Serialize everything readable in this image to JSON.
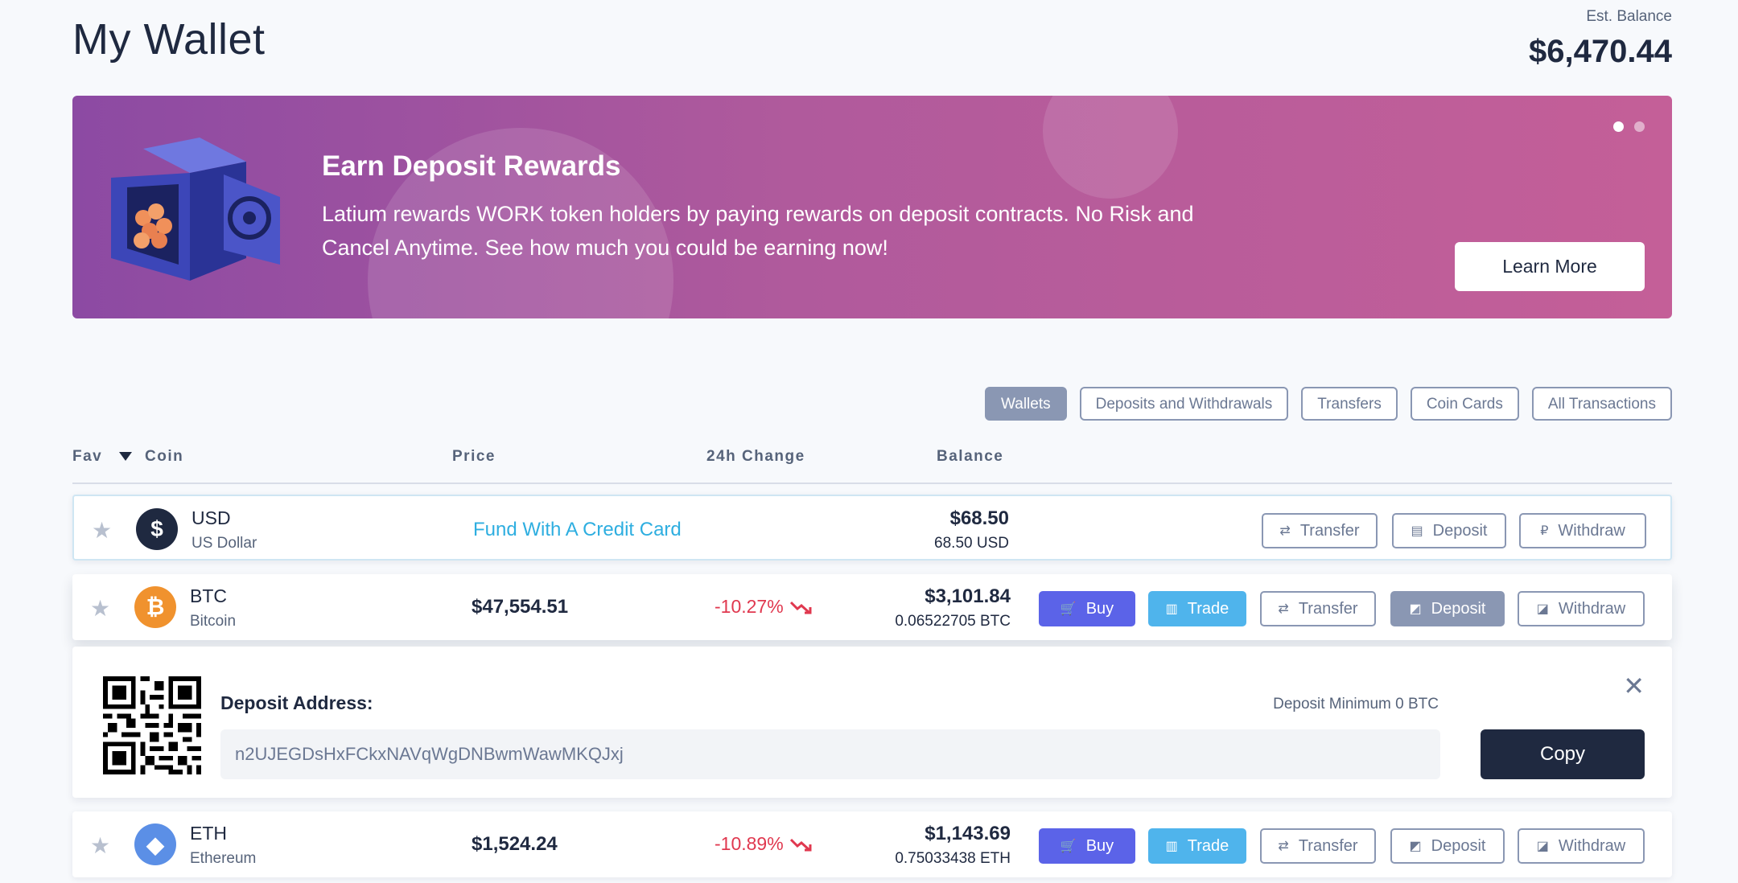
{
  "header": {
    "title": "My Wallet",
    "balance_label": "Est. Balance",
    "balance_value": "$6,470.44"
  },
  "banner": {
    "title": "Earn Deposit Rewards",
    "text": "Latium rewards WORK token holders by paying rewards on deposit contracts. No Risk and Cancel Anytime. See how much you could be earning now!",
    "button": "Learn More",
    "slides": 2,
    "active_slide": 1
  },
  "tabs": [
    {
      "label": "Wallets",
      "active": true
    },
    {
      "label": "Deposits and Withdrawals",
      "active": false
    },
    {
      "label": "Transfers",
      "active": false
    },
    {
      "label": "Coin Cards",
      "active": false
    },
    {
      "label": "All Transactions",
      "active": false
    }
  ],
  "columns": {
    "fav": "Fav",
    "coin": "Coin",
    "price": "Price",
    "change": "24h Change",
    "balance": "Balance"
  },
  "rows": [
    {
      "symbol": "USD",
      "name": "US Dollar",
      "fund_link": "Fund With A Credit Card",
      "balance_usd": "$68.50",
      "balance_crypto": "68.50 USD",
      "icon": "dollar-icon",
      "color": "#1f2940"
    },
    {
      "symbol": "BTC",
      "name": "Bitcoin",
      "price": "$47,554.51",
      "change": "-10.27%",
      "balance_usd": "$3,101.84",
      "balance_crypto": "0.06522705 BTC",
      "icon": "bitcoin-icon",
      "color": "#f0922e"
    },
    {
      "symbol": "ETH",
      "name": "Ethereum",
      "price": "$1,524.24",
      "change": "-10.89%",
      "balance_usd": "$1,143.69",
      "balance_crypto": "0.75033438 ETH",
      "icon": "ethereum-icon",
      "color": "#5b8fe6"
    }
  ],
  "actions": {
    "buy": "Buy",
    "trade": "Trade",
    "transfer": "Transfer",
    "deposit": "Deposit",
    "withdraw": "Withdraw"
  },
  "deposit_panel": {
    "label": "Deposit Address:",
    "minimum": "Deposit Minimum 0 BTC",
    "address": "n2UJEGDsHxFCkxNAVqWgDNBwmWawMKQJxj",
    "copy": "Copy",
    "close_icon": "close-icon"
  },
  "colors": {
    "accent_blue": "#5b63e8",
    "trade_blue": "#4fb4ec",
    "negative": "#e0384f",
    "link": "#2eaee0",
    "dark": "#1f2940"
  }
}
